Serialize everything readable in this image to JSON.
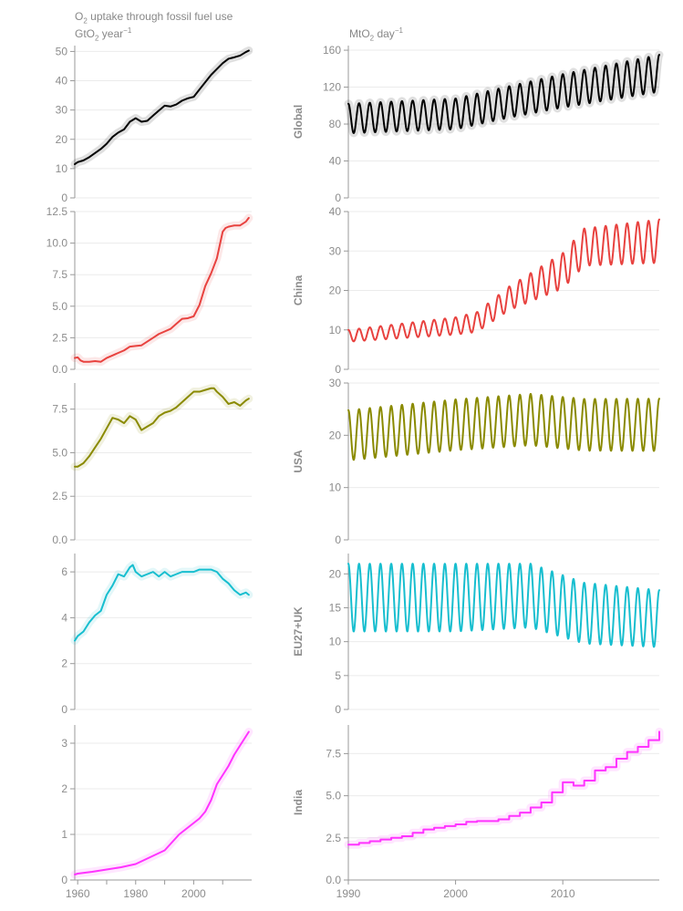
{
  "header": {
    "left_title": "uptake through fossil fuel use",
    "left_title_prefix": "O",
    "left_title_sub": "2",
    "left_unit_prefix": "GtO",
    "left_unit_sub": "2",
    "left_unit_suffix": " year",
    "left_unit_sup": "−1",
    "right_unit_prefix": "MtO",
    "right_unit_sub": "2",
    "right_unit_suffix": " day",
    "right_unit_sup": "−1"
  },
  "colors": {
    "Global": "#000000",
    "China": "#e8423f",
    "USA": "#8a8a00",
    "EU27+UK": "#17becf",
    "India": "#ff33ff",
    "axis": "#999999",
    "grid": "#ebebeb",
    "tick_label": "#8c8c8c"
  },
  "chart_data": [
    {
      "type": "line",
      "region": "Global",
      "panel": "annual",
      "ylim": [
        0,
        52
      ],
      "yticks": [
        0,
        10,
        20,
        30,
        40,
        50
      ],
      "ytick_labels": [
        "0",
        "10",
        "20",
        "30",
        "40",
        "50"
      ],
      "xlim": [
        1959,
        2020
      ],
      "uncertainty_band": true,
      "x": [
        1959,
        1960,
        1962,
        1964,
        1966,
        1968,
        1970,
        1972,
        1974,
        1976,
        1978,
        1980,
        1982,
        1984,
        1986,
        1988,
        1990,
        1992,
        1994,
        1996,
        1998,
        2000,
        2002,
        2004,
        2006,
        2008,
        2010,
        2012,
        2014,
        2016,
        2018,
        2019
      ],
      "y": [
        11.5,
        12.2,
        12.8,
        13.9,
        15.3,
        16.7,
        18.5,
        20.8,
        22.3,
        23.4,
        26.0,
        27.2,
        26.0,
        26.3,
        28.1,
        29.8,
        31.5,
        31.2,
        31.9,
        33.2,
        34.0,
        34.5,
        37.0,
        39.5,
        42.0,
        44.0,
        46.0,
        47.5,
        48.0,
        48.6,
        49.8,
        50.3
      ]
    },
    {
      "type": "line",
      "region": "Global",
      "panel": "daily",
      "ylim": [
        0,
        165
      ],
      "yticks": [
        0,
        40,
        80,
        120,
        160
      ],
      "ytick_labels": [
        "0",
        "40",
        "80",
        "120",
        "160"
      ],
      "xlim": [
        1990,
        2019
      ],
      "uncertainty_band": true,
      "trend_x": [
        1990,
        2000,
        2005,
        2010,
        2019
      ],
      "trend_y": [
        86,
        91,
        104,
        116,
        135
      ],
      "amp_x": [
        1990,
        2005,
        2019
      ],
      "amp_y": [
        16,
        17,
        20
      ]
    },
    {
      "type": "line",
      "region": "China",
      "panel": "annual",
      "ylim": [
        0,
        12.5
      ],
      "yticks": [
        0,
        2.5,
        5.0,
        7.5,
        10.0,
        12.5
      ],
      "ytick_labels": [
        "0.0",
        "2.5",
        "5.0",
        "7.5",
        "10.0",
        "12.5"
      ],
      "xlim": [
        1959,
        2020
      ],
      "uncertainty_band": true,
      "x": [
        1959,
        1960,
        1961,
        1962,
        1964,
        1966,
        1968,
        1970,
        1972,
        1974,
        1976,
        1978,
        1980,
        1982,
        1984,
        1986,
        1988,
        1990,
        1992,
        1994,
        1996,
        1998,
        2000,
        2002,
        2004,
        2006,
        2008,
        2010,
        2011,
        2012,
        2014,
        2016,
        2018,
        2019
      ],
      "y": [
        0.9,
        0.95,
        0.7,
        0.6,
        0.6,
        0.65,
        0.6,
        0.9,
        1.1,
        1.3,
        1.5,
        1.8,
        1.85,
        1.9,
        2.2,
        2.5,
        2.8,
        3.0,
        3.2,
        3.6,
        4.0,
        4.05,
        4.2,
        5.1,
        6.6,
        7.6,
        8.8,
        10.9,
        11.2,
        11.3,
        11.4,
        11.4,
        11.7,
        12.0
      ]
    },
    {
      "type": "line",
      "region": "China",
      "panel": "daily",
      "ylim": [
        0,
        40
      ],
      "yticks": [
        0,
        10,
        20,
        30,
        40
      ],
      "ytick_labels": [
        "0",
        "10",
        "20",
        "30",
        "40"
      ],
      "xlim": [
        1990,
        2019
      ],
      "uncertainty_band": false,
      "trend_x": [
        1990,
        2000,
        2002,
        2005,
        2010,
        2012,
        2019
      ],
      "trend_y": [
        8.5,
        11,
        12,
        18,
        25,
        31,
        32.5
      ],
      "amp_x": [
        1990,
        2000,
        2005,
        2010,
        2019
      ],
      "amp_y": [
        1.5,
        2.2,
        3.0,
        4.5,
        5.5
      ]
    },
    {
      "type": "line",
      "region": "USA",
      "panel": "annual",
      "ylim": [
        0,
        9
      ],
      "yticks": [
        0,
        2.5,
        5.0,
        7.5
      ],
      "ytick_labels": [
        "0.0",
        "2.5",
        "5.0",
        "7.5"
      ],
      "xlim": [
        1959,
        2020
      ],
      "uncertainty_band": true,
      "x": [
        1959,
        1960,
        1962,
        1964,
        1966,
        1968,
        1970,
        1972,
        1974,
        1976,
        1978,
        1980,
        1982,
        1984,
        1986,
        1988,
        1990,
        1992,
        1994,
        1996,
        1998,
        2000,
        2002,
        2004,
        2006,
        2007,
        2008,
        2010,
        2012,
        2014,
        2016,
        2018,
        2019
      ],
      "y": [
        4.2,
        4.2,
        4.4,
        4.8,
        5.3,
        5.8,
        6.4,
        7.0,
        6.9,
        6.7,
        7.1,
        6.9,
        6.3,
        6.5,
        6.7,
        7.1,
        7.3,
        7.4,
        7.6,
        7.9,
        8.2,
        8.5,
        8.5,
        8.6,
        8.7,
        8.7,
        8.5,
        8.2,
        7.8,
        7.9,
        7.7,
        8.0,
        8.1
      ]
    },
    {
      "type": "line",
      "region": "USA",
      "panel": "daily",
      "ylim": [
        0,
        30
      ],
      "yticks": [
        0,
        10,
        20,
        30
      ],
      "ytick_labels": [
        "0",
        "10",
        "20",
        "30"
      ],
      "xlim": [
        1990,
        2019
      ],
      "uncertainty_band": false,
      "trend_x": [
        1990,
        2000,
        2007,
        2012,
        2019
      ],
      "trend_y": [
        20,
        22,
        23,
        22,
        22
      ],
      "amp_x": [
        1990,
        2019
      ],
      "amp_y": [
        4.8,
        5.0
      ]
    },
    {
      "type": "line",
      "region": "EU27+UK",
      "panel": "annual",
      "ylim": [
        0,
        6.8
      ],
      "yticks": [
        0,
        2,
        4,
        6
      ],
      "ytick_labels": [
        "0",
        "2",
        "4",
        "6"
      ],
      "xlim": [
        1959,
        2020
      ],
      "uncertainty_band": true,
      "x": [
        1959,
        1960,
        1962,
        1964,
        1966,
        1968,
        1970,
        1972,
        1974,
        1976,
        1978,
        1979,
        1980,
        1982,
        1984,
        1986,
        1988,
        1990,
        1992,
        1994,
        1996,
        1998,
        2000,
        2002,
        2004,
        2006,
        2008,
        2010,
        2012,
        2014,
        2016,
        2018,
        2019
      ],
      "y": [
        3.0,
        3.2,
        3.4,
        3.8,
        4.1,
        4.3,
        5.0,
        5.4,
        5.9,
        5.8,
        6.2,
        6.3,
        6.0,
        5.8,
        5.9,
        6.0,
        5.8,
        6.0,
        5.8,
        5.9,
        6.0,
        6.0,
        6.0,
        6.1,
        6.1,
        6.1,
        6.0,
        5.7,
        5.5,
        5.2,
        5.0,
        5.1,
        5.0
      ]
    },
    {
      "type": "line",
      "region": "EU27+UK",
      "panel": "daily",
      "ylim": [
        0,
        23
      ],
      "yticks": [
        0,
        5,
        10,
        15,
        20
      ],
      "ytick_labels": [
        "0",
        "5",
        "10",
        "15",
        "20"
      ],
      "xlim": [
        1990,
        2019
      ],
      "uncertainty_band": false,
      "trend_x": [
        1990,
        2000,
        2007,
        2012,
        2019
      ],
      "trend_y": [
        16.5,
        16.5,
        16.8,
        14.2,
        13.4
      ],
      "amp_x": [
        1990,
        2000,
        2019
      ],
      "amp_y": [
        5.0,
        5.0,
        4.2
      ]
    },
    {
      "type": "line",
      "region": "India",
      "panel": "annual",
      "ylim": [
        0,
        3.4
      ],
      "yticks": [
        0,
        1,
        2,
        3
      ],
      "ytick_labels": [
        "0",
        "1",
        "2",
        "3"
      ],
      "xlim": [
        1959,
        2020
      ],
      "uncertainty_band": true,
      "x": [
        1959,
        1960,
        1965,
        1970,
        1975,
        1980,
        1985,
        1990,
        1995,
        2000,
        2002,
        2004,
        2006,
        2008,
        2010,
        2012,
        2014,
        2016,
        2018,
        2019
      ],
      "y": [
        0.12,
        0.14,
        0.18,
        0.23,
        0.28,
        0.35,
        0.5,
        0.65,
        1.0,
        1.25,
        1.35,
        1.5,
        1.75,
        2.1,
        2.3,
        2.5,
        2.75,
        2.95,
        3.15,
        3.25
      ],
      "xticks": [
        1960,
        1980,
        2000
      ],
      "xtick_labels": [
        "1960",
        "1980",
        "2000"
      ]
    },
    {
      "type": "line",
      "region": "India",
      "panel": "daily",
      "ylim": [
        0,
        9.2
      ],
      "yticks": [
        0,
        2.5,
        5.0,
        7.5
      ],
      "ytick_labels": [
        "0.0",
        "2.5",
        "5.0",
        "7.5"
      ],
      "xlim": [
        1990,
        2019
      ],
      "uncertainty_band": true,
      "step_x": [
        1990,
        1991,
        1992,
        1993,
        1994,
        1995,
        1996,
        1997,
        1998,
        1999,
        2000,
        2001,
        2002,
        2003,
        2004,
        2005,
        2006,
        2007,
        2008,
        2009,
        2010,
        2011,
        2012,
        2013,
        2014,
        2015,
        2016,
        2017,
        2018,
        2019
      ],
      "step_y": [
        2.1,
        2.2,
        2.3,
        2.4,
        2.5,
        2.6,
        2.8,
        3.0,
        3.1,
        3.2,
        3.3,
        3.45,
        3.5,
        3.5,
        3.6,
        3.8,
        4.0,
        4.3,
        4.6,
        5.2,
        5.8,
        5.6,
        5.9,
        6.5,
        6.7,
        7.2,
        7.6,
        7.9,
        8.3,
        8.8
      ],
      "xticks": [
        1990,
        2000,
        2010
      ],
      "xtick_labels": [
        "1990",
        "2000",
        "2010"
      ]
    }
  ]
}
